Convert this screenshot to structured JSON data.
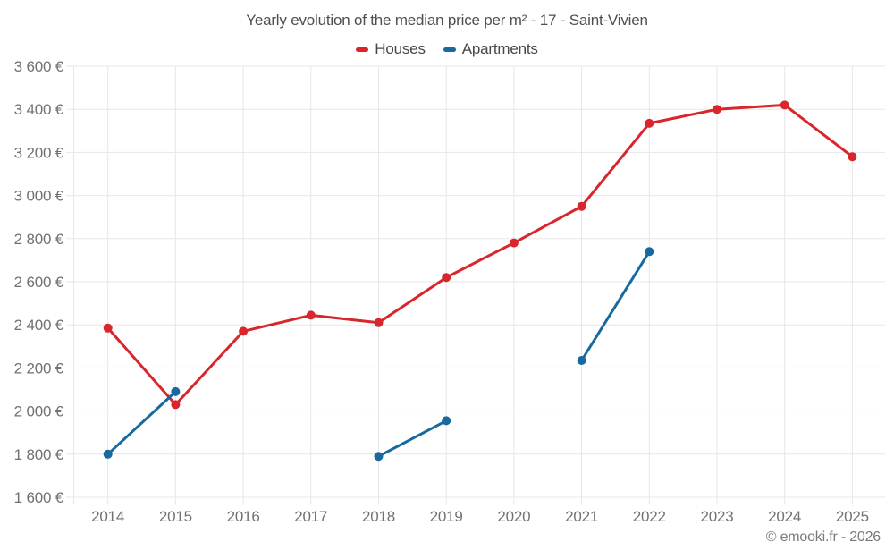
{
  "title": "Yearly evolution of the median price per m² - 17 - Saint-Vivien",
  "legend": {
    "items": [
      {
        "label": "Houses",
        "color": "#d8262c"
      },
      {
        "label": "Apartments",
        "color": "#17699e"
      }
    ]
  },
  "footer": {
    "credit": "© emooki.fr - 2026"
  },
  "chart_data": {
    "type": "line",
    "title": "Yearly evolution of the median price per m² - 17 - Saint-Vivien",
    "categories": [
      "2014",
      "2015",
      "2016",
      "2017",
      "2018",
      "2019",
      "2020",
      "2021",
      "2022",
      "2023",
      "2024",
      "2025"
    ],
    "series": [
      {
        "name": "Houses",
        "color": "#d8262c",
        "values": [
          2385,
          2030,
          2370,
          2445,
          2410,
          2620,
          2780,
          2950,
          3335,
          3400,
          3420,
          3180
        ]
      },
      {
        "name": "Apartments",
        "color": "#17699e",
        "values": [
          1800,
          2090,
          null,
          null,
          1790,
          1955,
          null,
          2235,
          2740,
          null,
          null,
          null
        ]
      }
    ],
    "xlabel": "",
    "ylabel": "",
    "ylim": [
      1600,
      3600
    ],
    "ytick_step": 200,
    "ytick_labels": [
      "1 600 €",
      "1 800 €",
      "2 000 €",
      "2 200 €",
      "2 400 €",
      "2 600 €",
      "2 800 €",
      "3 000 €",
      "3 200 €",
      "3 400 €",
      "3 600 €"
    ],
    "grid": true,
    "legend_position": "top",
    "marker": "circle",
    "gridline_color": "#e7e7e7"
  }
}
